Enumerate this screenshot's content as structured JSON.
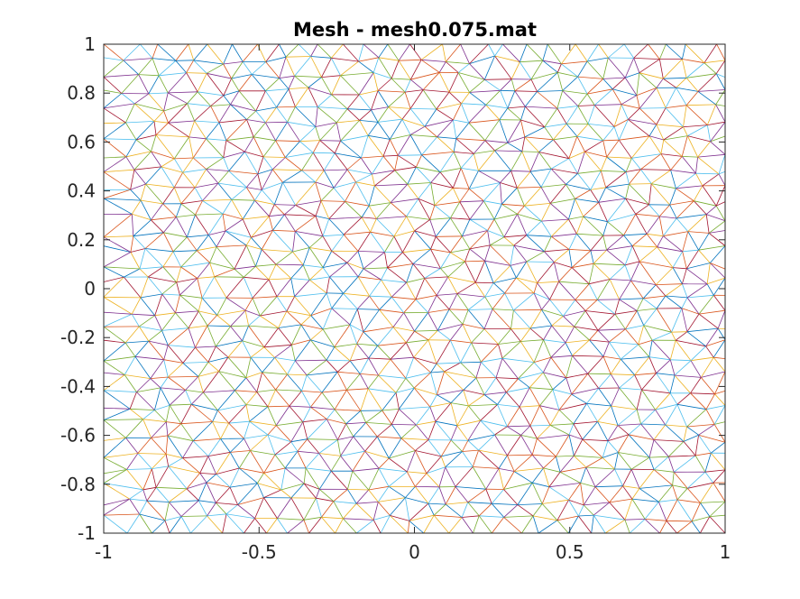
{
  "chart_data": {
    "type": "mesh",
    "title": "Mesh - mesh0.075.mat",
    "xlabel": "",
    "ylabel": "",
    "xlim": [
      -1,
      1
    ],
    "ylim": [
      -1,
      1
    ],
    "x_ticks": [
      -1,
      -0.5,
      0,
      0.5,
      1
    ],
    "x_tick_labels": [
      "-1",
      "-0.5",
      "0",
      "0.5",
      "1"
    ],
    "y_ticks": [
      -1,
      -0.8,
      -0.6,
      -0.4,
      -0.2,
      0,
      0.2,
      0.4,
      0.6,
      0.8,
      1
    ],
    "y_tick_labels": [
      "-1",
      "-0.8",
      "-0.6",
      "-0.4",
      "-0.2",
      "0",
      "0.2",
      "0.4",
      "0.6",
      "0.8",
      "1"
    ],
    "grid": false,
    "domain": "square [-1,1] x [-1,1]",
    "element_type": "triangles",
    "mesh_size": 0.075,
    "edge_colors": [
      "#0072BD",
      "#D95319",
      "#EDB120",
      "#7E2F8E",
      "#77AC30",
      "#4DBEEE",
      "#A2142F"
    ]
  }
}
